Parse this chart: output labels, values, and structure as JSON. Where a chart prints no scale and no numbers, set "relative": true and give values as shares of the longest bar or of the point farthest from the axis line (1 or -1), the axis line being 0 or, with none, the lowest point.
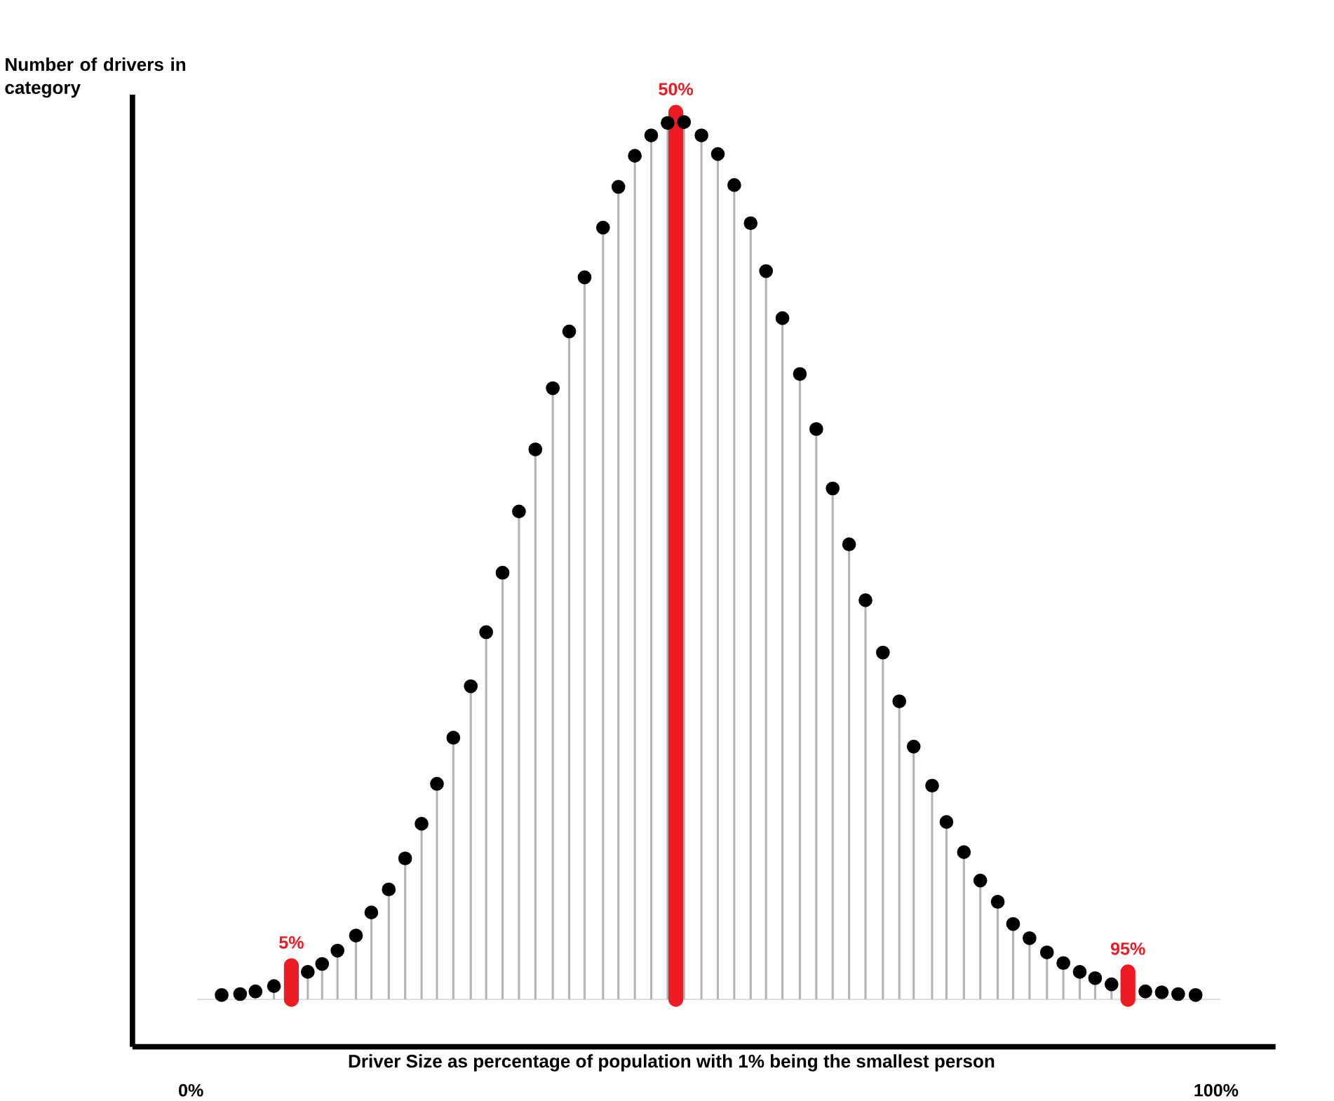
{
  "chart_data": {
    "type": "lollipop",
    "relative": true,
    "tick_labels": "x",
    "marker": "circle",
    "ylabel": "Number of drivers in category",
    "xlabel": "Driver Size as percentage of population with 1% being the smallest person",
    "xlim": [
      -5.7,
      105.8
    ],
    "xticks": [
      {
        "value": 0,
        "label": "0%"
      },
      {
        "value": 100,
        "label": "100%"
      }
    ],
    "series": [
      {
        "color": "#000000",
        "x": [
          3.0,
          4.8,
          6.3,
          8.1,
          11.4,
          12.8,
          14.3,
          16.1,
          17.6,
          19.3,
          20.9,
          22.5,
          24.0,
          25.6,
          27.3,
          28.8,
          30.4,
          32.0,
          33.6,
          35.3,
          36.9,
          38.4,
          40.2,
          41.7,
          43.3,
          44.9,
          46.5,
          48.1,
          49.8,
          51.4,
          53.0,
          54.6,
          56.1,
          57.7,
          59.4,
          61.0,
          62.6,
          64.2,
          65.8,
          67.5,
          69.1,
          70.5,
          72.3,
          73.7,
          75.4,
          77.0,
          78.7,
          80.2,
          81.8,
          83.5,
          85.1,
          86.7,
          88.2,
          89.8,
          93.1,
          94.7,
          96.3,
          98.0
        ],
        "values": [
          0.005,
          0.006,
          0.009,
          0.015,
          0.031,
          0.04,
          0.055,
          0.072,
          0.098,
          0.124,
          0.159,
          0.198,
          0.243,
          0.295,
          0.353,
          0.414,
          0.481,
          0.55,
          0.62,
          0.689,
          0.753,
          0.814,
          0.87,
          0.916,
          0.951,
          0.974,
          0.988,
          0.989,
          0.974,
          0.953,
          0.918,
          0.875,
          0.821,
          0.768,
          0.705,
          0.643,
          0.576,
          0.513,
          0.45,
          0.391,
          0.336,
          0.285,
          0.241,
          0.2,
          0.166,
          0.134,
          0.11,
          0.085,
          0.069,
          0.053,
          0.041,
          0.031,
          0.024,
          0.017,
          0.009,
          0.008,
          0.006,
          0.005
        ]
      },
      {
        "type": "bar",
        "color": "#ed1c24",
        "x": [
          9.8,
          47.3,
          91.4
        ],
        "values": [
          0.038,
          1.0,
          0.031
        ]
      }
    ],
    "annotations": [
      {
        "text": "5%",
        "x": 9.8,
        "y": 0.038
      },
      {
        "text": "50%",
        "x": 47.3,
        "y": 1.0
      },
      {
        "text": "95%",
        "x": 91.4,
        "y": 0.031
      }
    ]
  }
}
